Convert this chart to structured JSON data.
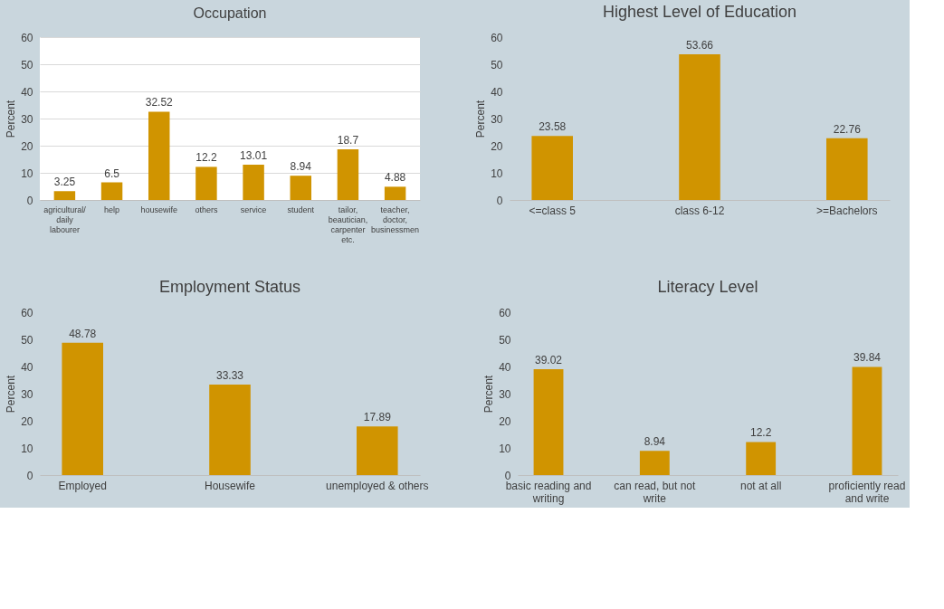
{
  "chart_data": [
    {
      "type": "bar",
      "title": "Occupation",
      "ylabel": "Percent",
      "categories": [
        "agricultural/ daily labourer",
        "help",
        "housewife",
        "others",
        "service",
        "student",
        "tailor, beautician, carpenter etc.",
        "teacher, doctor, businessmen"
      ],
      "values": [
        3.25,
        6.5,
        32.52,
        12.2,
        13.01,
        8.94,
        18.7,
        4.88
      ],
      "color": "#d09400",
      "ylim": [
        0,
        60
      ],
      "yticks": [
        0,
        10,
        20,
        30,
        40,
        50,
        60
      ],
      "grid": "y",
      "data_labels": true
    },
    {
      "type": "bar",
      "title": "Highest Level of Education",
      "ylabel": "Percent",
      "categories": [
        "<=class 5",
        "class 6-12",
        ">=Bachelors"
      ],
      "values": [
        23.58,
        53.66,
        22.76
      ],
      "color": "#d09400",
      "ylim": [
        0,
        60
      ],
      "yticks": [
        0,
        10,
        20,
        30,
        40,
        50,
        60
      ],
      "data_labels": true
    },
    {
      "type": "bar",
      "title": "Employment Status",
      "ylabel": "Percent",
      "categories": [
        "Employed",
        "Housewife",
        "unemployed & others"
      ],
      "values": [
        48.78,
        33.33,
        17.89
      ],
      "color": "#d09400",
      "ylim": [
        0,
        60
      ],
      "yticks": [
        0,
        10,
        20,
        30,
        40,
        50,
        60
      ],
      "data_labels": true
    },
    {
      "type": "bar",
      "title": "Literacy Level",
      "ylabel": "Percent",
      "categories": [
        "basic reading and writing",
        "can read, but not write",
        "not at all",
        "proficiently read and write"
      ],
      "values": [
        39.02,
        8.94,
        12.2,
        39.84
      ],
      "color": "#d09400",
      "ylim": [
        0,
        60
      ],
      "yticks": [
        0,
        10,
        20,
        30,
        40,
        50,
        60
      ],
      "data_labels": true
    }
  ]
}
